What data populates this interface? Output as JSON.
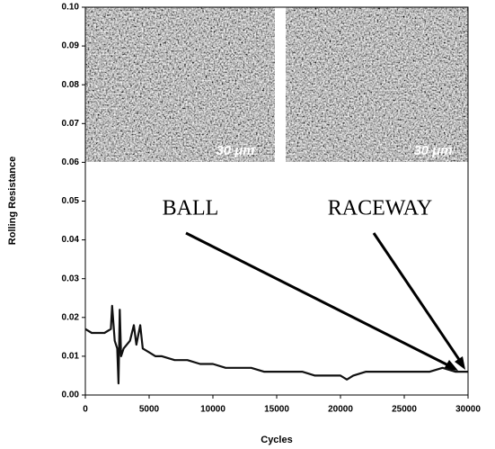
{
  "chart_data": {
    "type": "line",
    "x_label": "Cycles",
    "y_label": "Rolling Resistance",
    "annotations": [
      "BALL",
      "RACEWAY"
    ],
    "scale_bars": [
      "30 μm",
      "30 μm"
    ],
    "x": [
      0,
      500,
      1000,
      1500,
      2000,
      2100,
      2300,
      2500,
      2600,
      2700,
      2800,
      3000,
      3500,
      3800,
      4000,
      4300,
      4500,
      5000,
      5500,
      6000,
      7000,
      8000,
      9000,
      10000,
      11000,
      12000,
      13000,
      14000,
      15000,
      16000,
      17000,
      18000,
      19000,
      20000,
      20500,
      21000,
      22000,
      23000,
      24000,
      25000,
      26000,
      27000,
      28000,
      29000,
      30000
    ],
    "values": [
      0.017,
      0.016,
      0.016,
      0.016,
      0.017,
      0.023,
      0.014,
      0.012,
      0.003,
      0.022,
      0.01,
      0.012,
      0.014,
      0.018,
      0.013,
      0.018,
      0.012,
      0.011,
      0.01,
      0.01,
      0.009,
      0.009,
      0.008,
      0.008,
      0.007,
      0.007,
      0.007,
      0.006,
      0.006,
      0.006,
      0.006,
      0.005,
      0.005,
      0.005,
      0.004,
      0.005,
      0.006,
      0.006,
      0.006,
      0.006,
      0.006,
      0.006,
      0.007,
      0.006,
      0.006
    ],
    "color": "#111111",
    "xlim": [
      0,
      30000
    ],
    "xticks": [
      0,
      5000,
      10000,
      15000,
      20000,
      25000,
      30000
    ],
    "ylim": [
      0,
      0.1
    ],
    "yticks": [
      {
        "value": 0,
        "label": "0.00"
      },
      0.01,
      0.02,
      0.03,
      0.04,
      0.05,
      0.06,
      0.07,
      0.08,
      0.09,
      {
        "value": 0.1,
        "label": "0.10"
      }
    ]
  }
}
